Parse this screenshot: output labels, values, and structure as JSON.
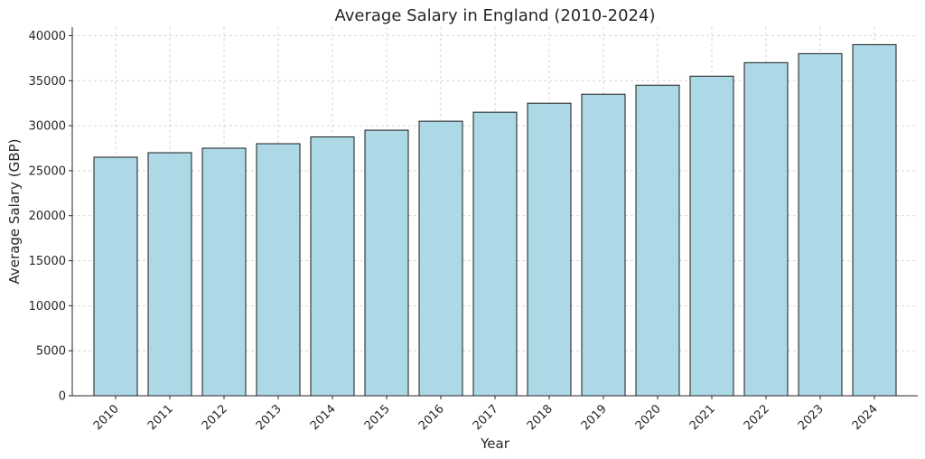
{
  "chart_data": {
    "type": "bar",
    "title": "Average Salary in England (2010-2024)",
    "xlabel": "Year",
    "ylabel": "Average Salary (GBP)",
    "categories": [
      "2010",
      "2011",
      "2012",
      "2013",
      "2014",
      "2015",
      "2016",
      "2017",
      "2018",
      "2019",
      "2020",
      "2021",
      "2022",
      "2023",
      "2024"
    ],
    "values": [
      26500,
      27000,
      27500,
      28000,
      28750,
      29500,
      30500,
      31500,
      32500,
      33500,
      34500,
      35500,
      37000,
      38000,
      39000
    ],
    "ylim": [
      0,
      40950
    ],
    "yticks": [
      0,
      5000,
      10000,
      15000,
      20000,
      25000,
      30000,
      35000,
      40000
    ],
    "ytick_labels": [
      "0",
      "5000",
      "10000",
      "15000",
      "20000",
      "25000",
      "30000",
      "35000",
      "40000"
    ],
    "grid": true,
    "colors": {
      "bar": "#add8e6",
      "edge": "#1a1a1a"
    }
  }
}
